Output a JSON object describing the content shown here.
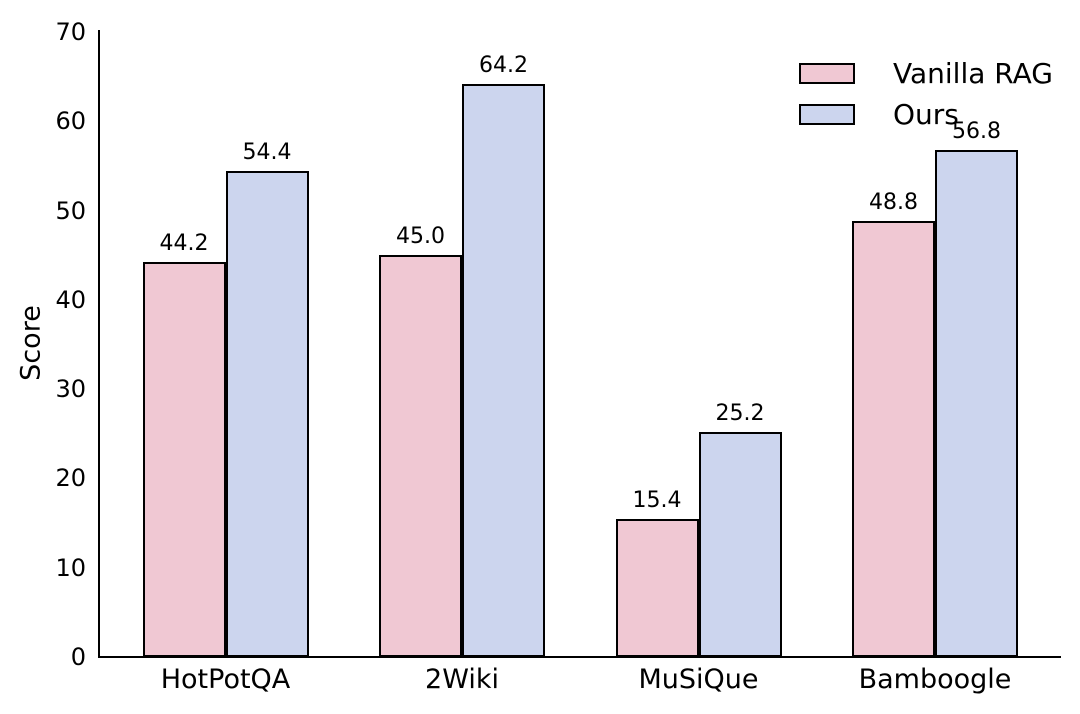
{
  "chart_data": {
    "type": "bar",
    "categories": [
      "HotPotQA",
      "2Wiki",
      "MuSiQue",
      "Bamboogle"
    ],
    "series": [
      {
        "name": "Vanilla RAG",
        "values": [
          44.2,
          45.0,
          15.4,
          48.8
        ],
        "color": "#f0c8d3"
      },
      {
        "name": "Ours",
        "values": [
          54.4,
          64.2,
          25.2,
          56.8
        ],
        "color": "#ccd5ee"
      }
    ],
    "title": "",
    "xlabel": "",
    "ylabel": "Score",
    "ylim": [
      0,
      70
    ],
    "yticks": [
      0,
      10,
      20,
      30,
      40,
      50,
      60,
      70
    ],
    "grid": false,
    "show_value_labels": true,
    "value_label_decimals": 1,
    "legend_position": "upper right",
    "legend_frame": false,
    "bar_edge_color": "#000000",
    "axis_color": "#000000",
    "text_color": "#000000",
    "background_color": "#ffffff"
  }
}
